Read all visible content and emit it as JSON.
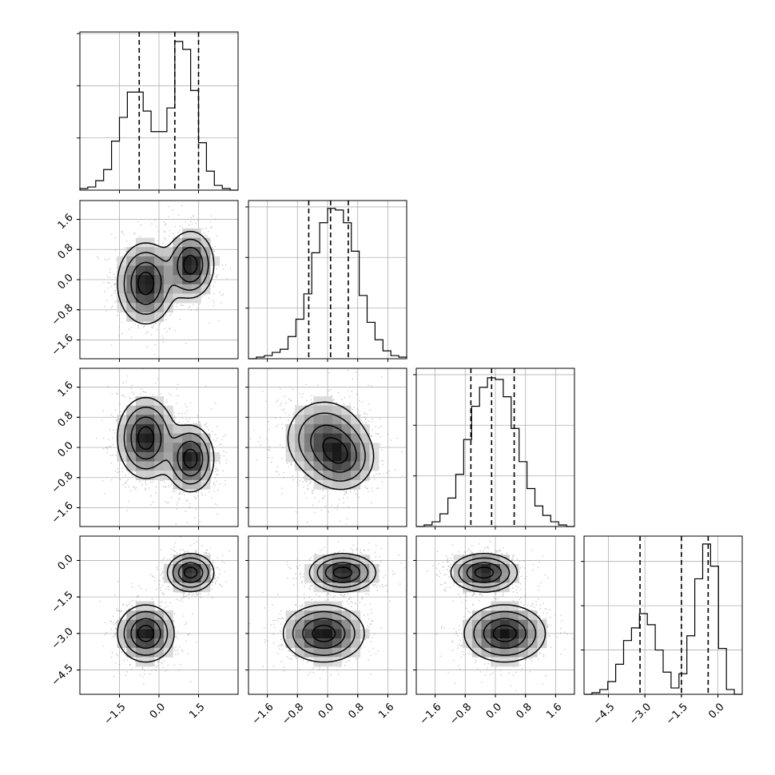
{
  "chart_data": {
    "type": "corner",
    "colors": {
      "frame": "#000000",
      "grid": "#b0b0b0",
      "contour": "#000000",
      "points": "#808080"
    },
    "grid": true,
    "params": [
      {
        "id": "p0",
        "range": [
          -3.0,
          3.0
        ],
        "ticks": [
          -1.5,
          0.0,
          1.5
        ],
        "tick_labels": [
          "−1.5",
          "0.0",
          "1.5"
        ],
        "quantiles": [
          -0.75,
          0.6,
          1.5
        ],
        "hist": [
          0.01,
          0.02,
          0.06,
          0.13,
          0.31,
          0.46,
          0.62,
          0.62,
          0.5,
          0.37,
          0.37,
          0.52,
          0.94,
          0.89,
          0.63,
          0.3,
          0.12,
          0.03,
          0.01,
          0.0
        ],
        "y_ticks": [
          0.33,
          0.66,
          0.99
        ]
      },
      {
        "id": "p1",
        "range": [
          -2.1,
          2.1
        ],
        "ticks": [
          -1.6,
          -0.8,
          0.0,
          0.8,
          1.6
        ],
        "tick_labels": [
          "−1.6",
          "−0.8",
          "0.0",
          "0.8",
          "1.6"
        ],
        "quantiles": [
          -0.5,
          0.08,
          0.55
        ],
        "hist": [
          0.0,
          0.01,
          0.02,
          0.04,
          0.06,
          0.14,
          0.25,
          0.41,
          0.67,
          0.86,
          0.95,
          0.94,
          0.86,
          0.68,
          0.4,
          0.23,
          0.12,
          0.05,
          0.02,
          0.01
        ],
        "y_ticks": [
          0.32,
          0.64,
          0.96
        ]
      },
      {
        "id": "p2",
        "range": [
          -2.1,
          2.1
        ],
        "ticks": [
          -1.6,
          -0.8,
          0.0,
          0.8,
          1.6
        ],
        "tick_labels": [
          "−1.6",
          "−0.8",
          "0.0",
          "0.8",
          "1.6"
        ],
        "quantiles": [
          -0.65,
          -0.1,
          0.5
        ],
        "hist": [
          0.0,
          0.01,
          0.03,
          0.08,
          0.18,
          0.33,
          0.55,
          0.76,
          0.88,
          0.94,
          0.93,
          0.82,
          0.62,
          0.41,
          0.24,
          0.13,
          0.07,
          0.03,
          0.01,
          0.0
        ],
        "y_ticks": [
          0.32,
          0.64,
          0.96
        ]
      },
      {
        "id": "p3",
        "range": [
          -5.5,
          1.0
        ],
        "ticks": [
          -4.5,
          -3.0,
          -1.5,
          0.0
        ],
        "tick_labels": [
          "−4.5",
          "−3.0",
          "−1.5",
          "0.0"
        ],
        "quantiles": [
          -3.2,
          -1.5,
          -0.4
        ],
        "hist": [
          0.0,
          0.01,
          0.03,
          0.08,
          0.19,
          0.34,
          0.42,
          0.51,
          0.44,
          0.28,
          0.14,
          0.04,
          0.13,
          0.37,
          0.73,
          0.95,
          0.81,
          0.29,
          0.03,
          0.0
        ],
        "y_ticks": [
          0.28,
          0.56,
          0.84
        ]
      }
    ],
    "modes": [
      {
        "weight": 0.5,
        "mean": [
          1.2,
          0.4,
          -0.3,
          -0.5
        ],
        "sd": [
          0.45,
          0.45,
          0.45,
          0.4
        ]
      },
      {
        "weight": 0.5,
        "mean": [
          -0.5,
          -0.1,
          0.25,
          -3.0
        ],
        "sd": [
          0.55,
          0.55,
          0.55,
          0.6
        ]
      }
    ],
    "contour_levels": [
      0.118,
      0.393,
      0.675,
      0.865
    ]
  }
}
